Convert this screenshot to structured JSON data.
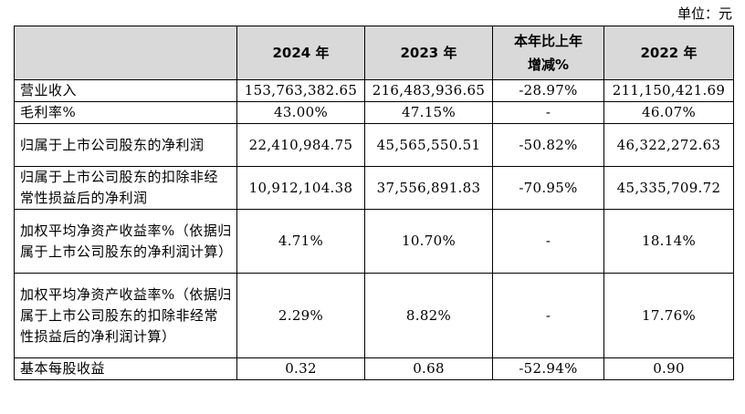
{
  "unit": "单位：元",
  "table": {
    "headers": [
      "",
      "2024 年",
      "2023 年",
      "本年比上年\n增减%",
      "2022 年"
    ],
    "rows": [
      {
        "label": "营业收入",
        "y2024": "153,763,382.65",
        "y2023": "216,483,936.65",
        "change": "-28.97%",
        "y2022": "211,150,421.69"
      },
      {
        "label": "毛利率%",
        "y2024": "43.00%",
        "y2023": "47.15%",
        "change": "-",
        "y2022": "46.07%"
      },
      {
        "label": "归属于上市公司股东的净利润",
        "y2024": "22,410,984.75",
        "y2023": "45,565,550.51",
        "change": "-50.82%",
        "y2022": "46,322,272.63"
      },
      {
        "label": "归属于上市公司股东的扣除非经常性损益后的净利润",
        "y2024": "10,912,104.38",
        "y2023": "37,556,891.83",
        "change": "-70.95%",
        "y2022": "45,335,709.72"
      },
      {
        "label": "加权平均净资产收益率%（依据归属于上市公司股东的净利润计算）",
        "y2024": "4.71%",
        "y2023": "10.70%",
        "change": "-",
        "y2022": "18.14%"
      },
      {
        "label": "加权平均净资产收益率%（依据归属于上市公司股东的扣除非经常性损益后的净利润计算）",
        "y2024": "2.29%",
        "y2023": "8.82%",
        "change": "-",
        "y2022": "17.76%"
      },
      {
        "label": "基本每股收益",
        "y2024": "0.32",
        "y2023": "0.68",
        "change": "-52.94%",
        "y2022": "0.90"
      }
    ]
  }
}
